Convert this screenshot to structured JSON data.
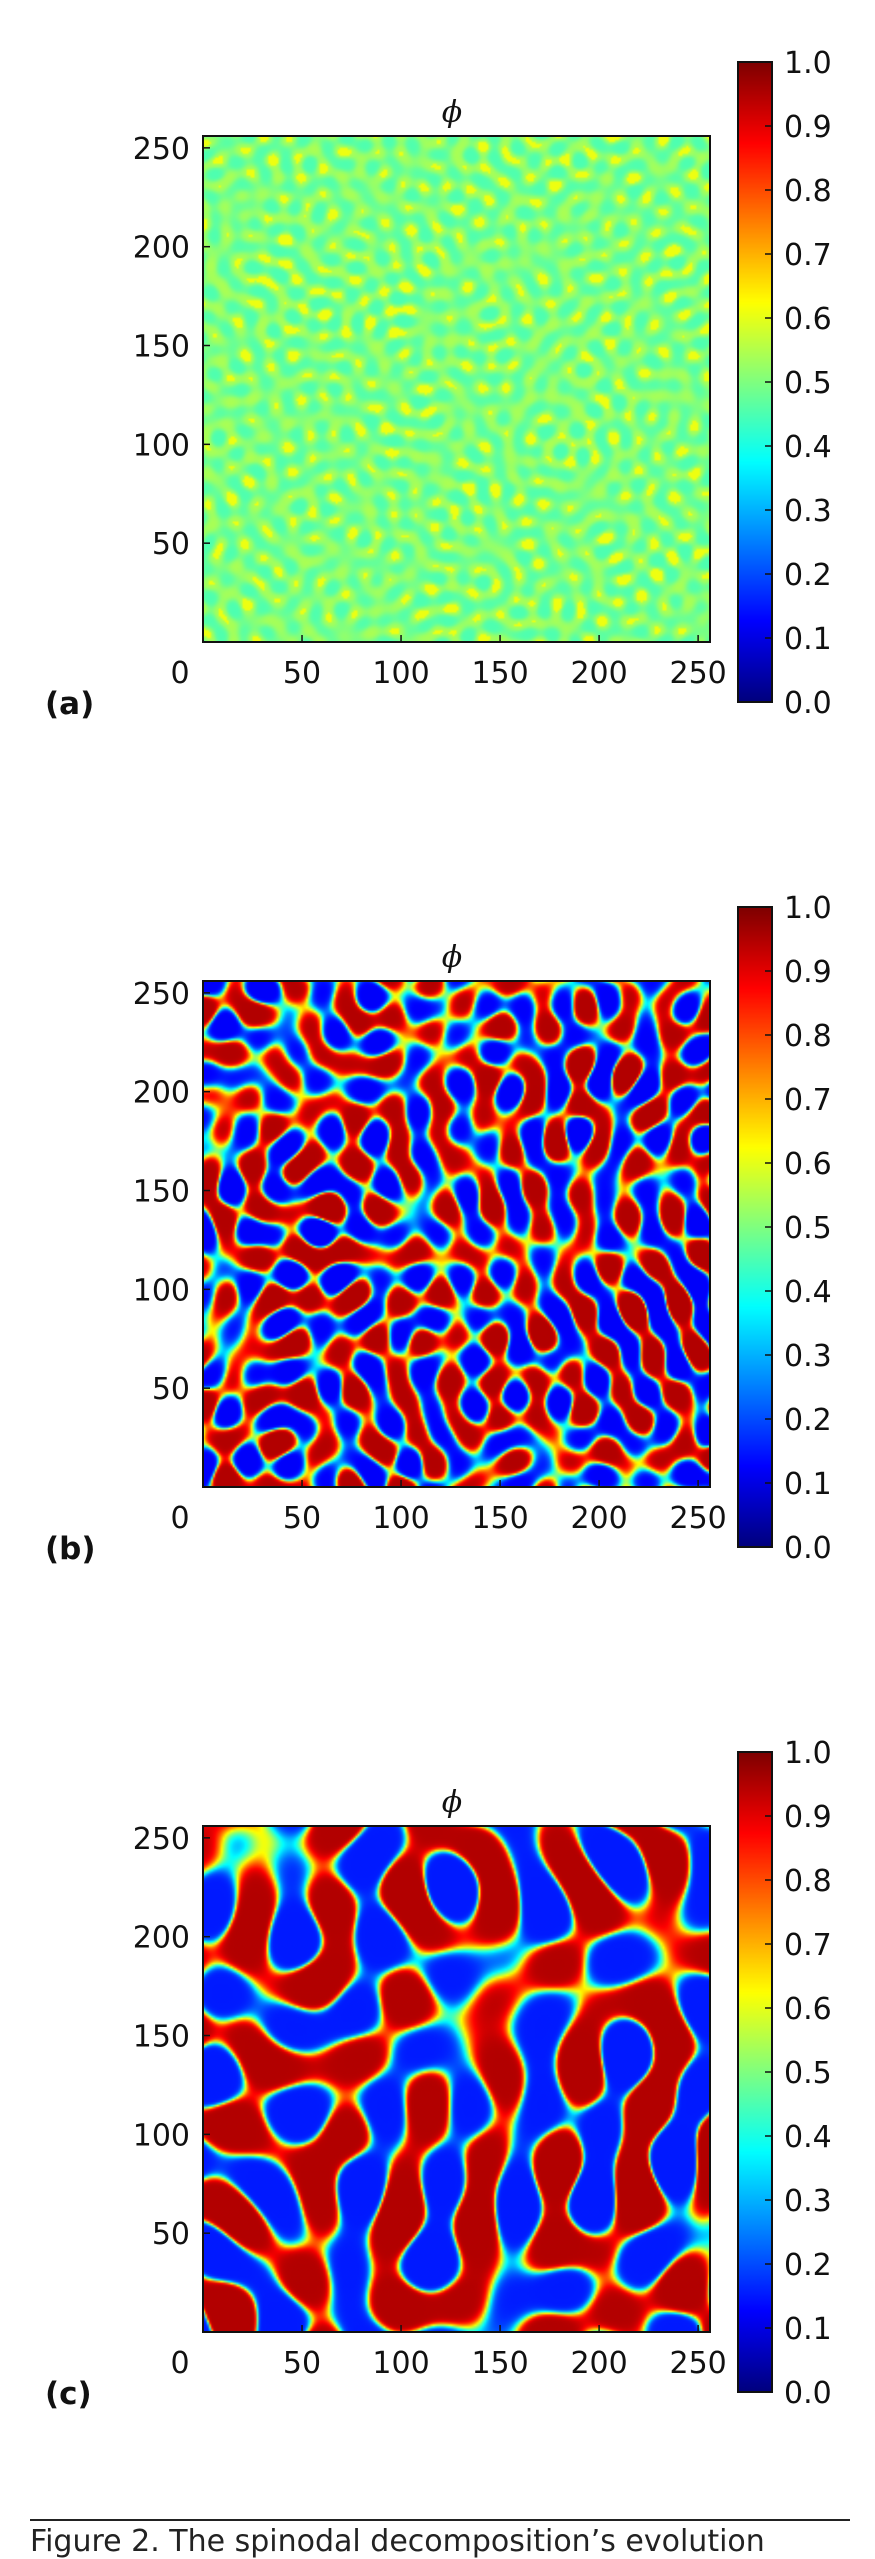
{
  "caption": "Figure 2. The spinodal decomposition’s evolution",
  "chart_data": [
    {
      "type": "heatmap",
      "panel_label": "(a)",
      "title": "ϕ",
      "stage": "early",
      "x_ticks": [
        "0",
        "50",
        "100",
        "150",
        "200",
        "250"
      ],
      "y_ticks": [
        "50",
        "100",
        "150",
        "200",
        "250"
      ],
      "xlim": [
        0,
        256
      ],
      "ylim": [
        0,
        256
      ],
      "value_range": [
        0.0,
        1.0
      ],
      "field_mean": 0.5,
      "field_amplitude": 0.1,
      "colorbar_ticks": [
        "0.0",
        "0.1",
        "0.2",
        "0.3",
        "0.4",
        "0.5",
        "0.6",
        "0.7",
        "0.8",
        "0.9",
        "1.0"
      ],
      "colormap": [
        "#00007f",
        "#0000ff",
        "#007fff",
        "#00ffff",
        "#7fff7f",
        "#ffff00",
        "#ff7f00",
        "#ff0000",
        "#7f0000"
      ]
    },
    {
      "type": "heatmap",
      "panel_label": "(b)",
      "title": "ϕ",
      "stage": "intermediate",
      "x_ticks": [
        "0",
        "50",
        "100",
        "150",
        "200",
        "250"
      ],
      "y_ticks": [
        "50",
        "100",
        "150",
        "200",
        "250"
      ],
      "xlim": [
        0,
        256
      ],
      "ylim": [
        0,
        256
      ],
      "value_range": [
        0.0,
        1.0
      ],
      "field_min": 0.12,
      "field_max": 0.95,
      "colorbar_ticks": [
        "0.0",
        "0.1",
        "0.2",
        "0.3",
        "0.4",
        "0.5",
        "0.6",
        "0.7",
        "0.8",
        "0.9",
        "1.0"
      ],
      "colormap": [
        "#00007f",
        "#0000ff",
        "#007fff",
        "#00ffff",
        "#7fff7f",
        "#ffff00",
        "#ff7f00",
        "#ff0000",
        "#7f0000"
      ]
    },
    {
      "type": "heatmap",
      "panel_label": "(c)",
      "title": "ϕ",
      "stage": "late",
      "x_ticks": [
        "0",
        "50",
        "100",
        "150",
        "200",
        "250"
      ],
      "y_ticks": [
        "50",
        "100",
        "150",
        "200",
        "250"
      ],
      "xlim": [
        0,
        256
      ],
      "ylim": [
        0,
        256
      ],
      "value_range": [
        0.0,
        1.0
      ],
      "field_min": 0.15,
      "field_max": 0.95,
      "colorbar_ticks": [
        "0.0",
        "0.1",
        "0.2",
        "0.3",
        "0.4",
        "0.5",
        "0.6",
        "0.7",
        "0.8",
        "0.9",
        "1.0"
      ],
      "colormap": [
        "#00007f",
        "#0000ff",
        "#007fff",
        "#00ffff",
        "#7fff7f",
        "#ffff00",
        "#ff7f00",
        "#ff0000",
        "#7f0000"
      ]
    }
  ]
}
